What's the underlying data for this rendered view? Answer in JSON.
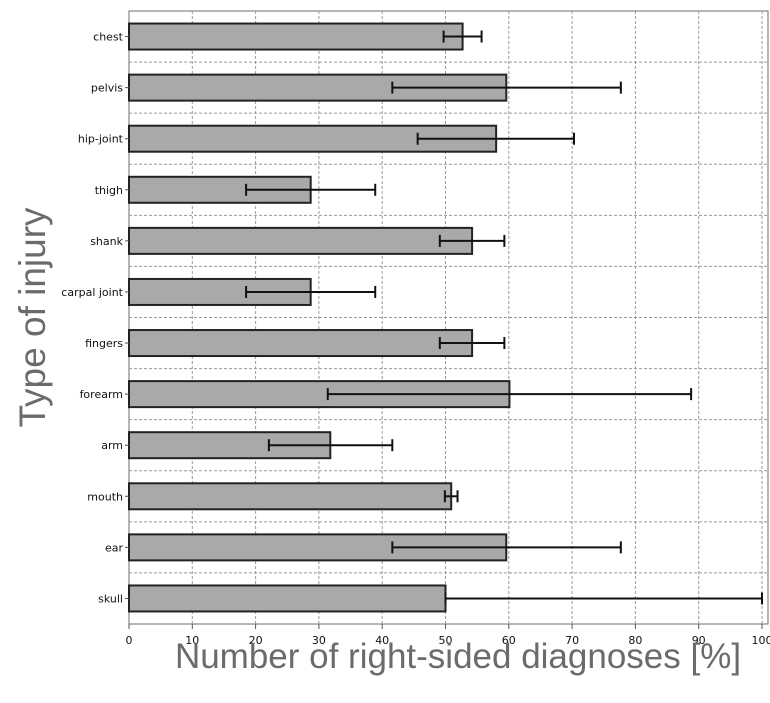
{
  "chart_data": {
    "type": "bar",
    "orientation": "horizontal",
    "title": "",
    "xlabel": "Number of right-sided diagnoses [%]",
    "ylabel": "Type of injury",
    "xlim": [
      0,
      100
    ],
    "xticks": [
      0,
      10,
      20,
      30,
      40,
      50,
      60,
      70,
      80,
      90,
      100
    ],
    "grid": "on (dashed)",
    "colors": {
      "bar_fill": "#a9a9a9",
      "bar_stroke": "#222222",
      "error_bar": "#111111",
      "grid": "#9a9a9a"
    },
    "categories": [
      "chest",
      "pelvis",
      "hip-joint",
      "thigh",
      "shank",
      "carpal joint",
      "fingers",
      "forearm",
      "arm",
      "mouth",
      "ear",
      "skull"
    ],
    "values": [
      52.7,
      59.6,
      58.0,
      28.7,
      54.2,
      28.7,
      54.2,
      60.1,
      31.8,
      50.9,
      59.6,
      50.0
    ],
    "error_low": [
      49.7,
      41.6,
      45.6,
      18.5,
      49.1,
      18.5,
      49.1,
      31.4,
      22.1,
      49.9,
      41.6,
      50.0
    ],
    "error_high": [
      55.7,
      77.7,
      70.3,
      38.9,
      59.3,
      38.9,
      59.3,
      88.8,
      41.6,
      51.9,
      77.7,
      100.0
    ]
  }
}
